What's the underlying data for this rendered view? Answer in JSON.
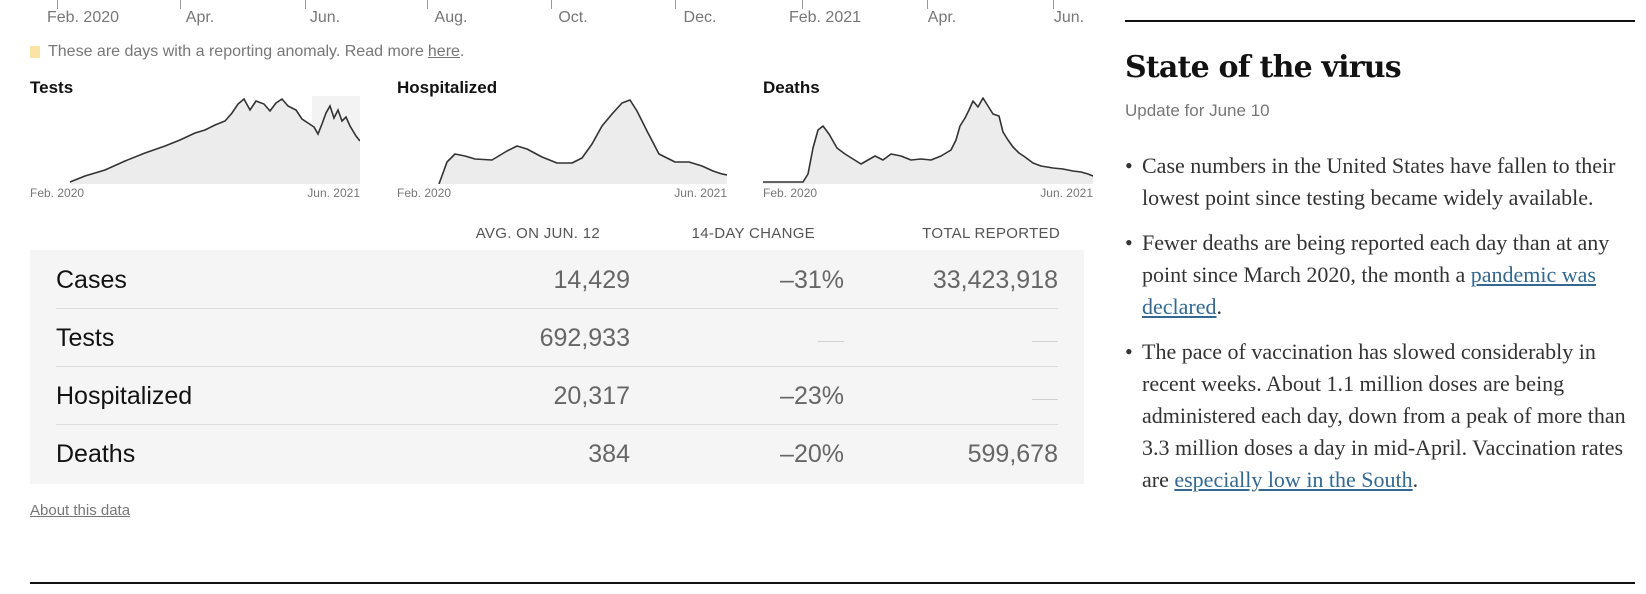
{
  "axis": {
    "ticks": [
      "Feb. 2020",
      "Apr.",
      "Jun.",
      "Aug.",
      "Oct.",
      "Dec.",
      "Feb. 2021",
      "Apr.",
      "Jun."
    ]
  },
  "anomaly_note": {
    "text": "These are days with a reporting anomaly. Read more",
    "link": "here",
    "suffix": ".",
    "swatch_color": "#fbe3a5"
  },
  "sparklines": [
    {
      "title": "Tests",
      "start_label": "Feb. 2020",
      "end_label": "Jun. 2021"
    },
    {
      "title": "Hospitalized",
      "start_label": "Feb. 2020",
      "end_label": "Jun. 2021"
    },
    {
      "title": "Deaths",
      "start_label": "Feb. 2020",
      "end_label": "Jun. 2021"
    }
  ],
  "table": {
    "headers": [
      "AVG. ON JUN. 12",
      "14-DAY CHANGE",
      "TOTAL REPORTED"
    ],
    "rows": [
      {
        "label": "Cases",
        "avg": "14,429",
        "change": "–31%",
        "total": "33,423,918"
      },
      {
        "label": "Tests",
        "avg": "692,933",
        "change": "",
        "total": ""
      },
      {
        "label": "Hospitalized",
        "avg": "20,317",
        "change": "–23%",
        "total": ""
      },
      {
        "label": "Deaths",
        "avg": "384",
        "change": "–20%",
        "total": "599,678"
      }
    ]
  },
  "about_link": "About this data",
  "state_of_virus": {
    "title": "State of the virus",
    "update": "Update for June 10",
    "b1": "Case numbers in the United States have fallen to their lowest point since testing became widely available.",
    "b2_pre": "Fewer deaths are being reported each day than at any point since March 2020, the month a ",
    "b2_link": "pandemic was declared",
    "b2_post": ".",
    "b3_pre": "The pace of vaccination has slowed considerably in recent weeks. About 1.1 million doses are being administered each day, down from a peak of more than 3.3 million doses a day in mid-April. Vaccination rates are ",
    "b3_link": "especially low in the South",
    "b3_post": "."
  },
  "colors": {
    "link": "#326891",
    "chart_line": "#333333",
    "chart_fill": "#ececec",
    "table_bg": "#f5f5f5"
  }
}
